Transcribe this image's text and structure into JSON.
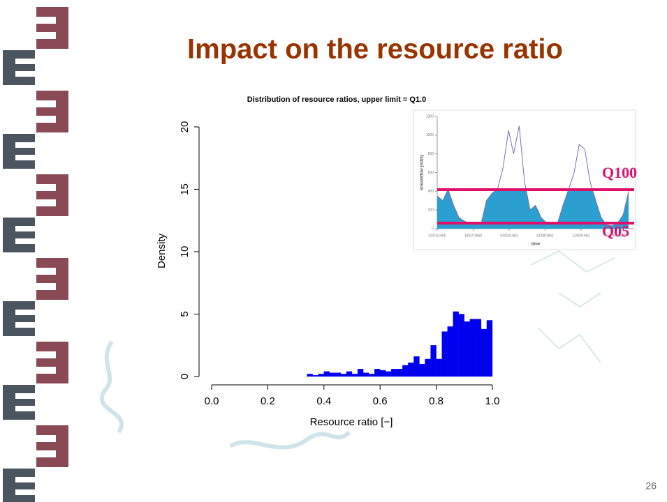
{
  "slide_title": "Impact on the resource ratio",
  "page_number": "26",
  "chart_data": [
    {
      "type": "histogram",
      "title": "Distribution of resource ratios, upper limit = Q1.0",
      "x_label": "Resource ratio [−]",
      "y_label": "Density",
      "color": "#0000ee",
      "bins": [
        0.34,
        0.36,
        0.38,
        0.4,
        0.42,
        0.44,
        0.46,
        0.48,
        0.5,
        0.52,
        0.54,
        0.56,
        0.58,
        0.6,
        0.62,
        0.64,
        0.66,
        0.68,
        0.7,
        0.72,
        0.74,
        0.76,
        0.78,
        0.8,
        0.82,
        0.84,
        0.86,
        0.88,
        0.9,
        0.92,
        0.94,
        0.96,
        0.98,
        1.0
      ],
      "values": [
        0.2,
        0.1,
        0.2,
        0.4,
        0.3,
        0.3,
        0.2,
        0.4,
        0.2,
        0.6,
        0.3,
        0.2,
        0.6,
        0.5,
        0.4,
        0.6,
        0.6,
        0.9,
        1.1,
        1.6,
        1.0,
        1.4,
        2.5,
        1.4,
        3.6,
        4.0,
        5.2,
        5.0,
        4.4,
        4.6,
        4.6,
        3.8,
        4.5
      ],
      "xlim": [
        0,
        1
      ],
      "xticks": [
        {
          "value": 0,
          "label": "0.0"
        },
        0.2,
        0.4,
        0.6,
        0.8,
        {
          "value": 1,
          "label": "1.0"
        }
      ],
      "ylim": [
        0,
        20
      ],
      "yticks": [
        0,
        5,
        10,
        15,
        20
      ]
    },
    {
      "type": "area",
      "x_label": "time",
      "y_label": "streamflow (m3/s)",
      "color": "#2a9fd0",
      "line_color": "#7b6fb3",
      "x": [
        "1960-01-01",
        "1960-02-01",
        "1960-03-01",
        "1960-04-01",
        "1960-05-01",
        "1960-06-01",
        "1960-07-01",
        "1960-08-01",
        "1960-09-01",
        "1960-10-01",
        "1960-11-01",
        "1960-12-01",
        "1961-01-01",
        "1961-02-01",
        "1961-03-01",
        "1961-04-01",
        "1961-05-01",
        "1961-06-01",
        "1961-07-01",
        "1961-08-01",
        "1961-09-01",
        "1961-10-01",
        "1961-11-01",
        "1961-12-01",
        "1962-01-01",
        "1962-02-01",
        "1962-03-01",
        "1962-04-01",
        "1962-05-01",
        "1962-06-01",
        "1962-07-01",
        "1962-08-01",
        "1962-09-01",
        "1962-10-01",
        "1962-11-01",
        "1962-12-01"
      ],
      "values": [
        350,
        300,
        420,
        250,
        120,
        80,
        60,
        40,
        50,
        300,
        380,
        420,
        650,
        1050,
        800,
        1100,
        500,
        200,
        250,
        120,
        60,
        50,
        60,
        250,
        420,
        600,
        900,
        850,
        500,
        300,
        120,
        40,
        30,
        60,
        150,
        400
      ],
      "xlim": [
        "1960-01-01",
        "1963-01-01"
      ],
      "xticks": [
        {
          "value": "1960-01-01",
          "label": "01/01/1960"
        },
        {
          "value": "1960-07-19",
          "label": "19/07/1960"
        },
        {
          "value": "1961-02-04",
          "label": "04/02/1961"
        },
        {
          "value": "1961-08-23",
          "label": "23/08/1961"
        },
        {
          "value": "1962-03-11",
          "label": "11/03/1962"
        },
        {
          "value": "1962-09-27",
          "label": "27/09/1962"
        }
      ],
      "ylim": [
        0,
        1200
      ],
      "yticks": [
        0,
        200,
        400,
        600,
        800,
        1000,
        1200
      ],
      "thresholds": [
        {
          "label": "Q100",
          "value": 417,
          "color": "#e0106a"
        },
        {
          "label": "Q05",
          "value": 60,
          "color": "#e0106a"
        }
      ]
    }
  ]
}
